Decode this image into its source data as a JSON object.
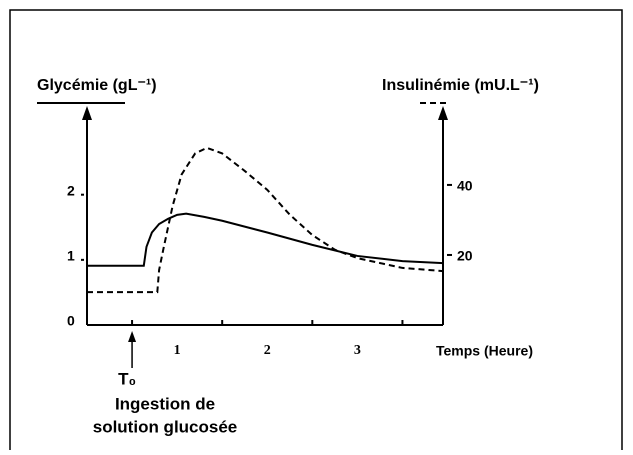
{
  "chart_data": {
    "type": "line",
    "y_label": "Glycémie (gL⁻¹)",
    "y2_label": "Insulinémie (mU.L⁻¹)",
    "x_label": "Temps (Heure)",
    "xlim": [
      0,
      3.95
    ],
    "xticks": [
      1,
      2,
      3
    ],
    "xminor": [
      0.5,
      1.5,
      2.5,
      3.5
    ],
    "ylim": [
      0,
      3.3
    ],
    "yticks": [
      0,
      1,
      2
    ],
    "y2lim": [
      0,
      61.4
    ],
    "y2ticks": [
      20,
      40
    ],
    "series": [
      {
        "color": "#000000",
        "dash": "solid",
        "x": [
          0,
          0.63,
          0.66,
          0.72,
          0.8,
          0.9,
          1.0,
          1.1,
          1.3,
          1.5,
          2.0,
          2.5,
          3.0,
          3.5,
          3.95
        ],
        "values": [
          0.91,
          0.91,
          1.2,
          1.42,
          1.55,
          1.63,
          1.69,
          1.71,
          1.66,
          1.6,
          1.42,
          1.23,
          1.06,
          0.98,
          0.95
        ]
      },
      {
        "color": "#000000",
        "dash": "dashed",
        "axis": "y2",
        "x": [
          0,
          0.78,
          0.8,
          0.85,
          0.95,
          1.05,
          1.2,
          1.33,
          1.5,
          1.75,
          2.0,
          2.25,
          2.5,
          2.75,
          3.0,
          3.5,
          3.95
        ],
        "values": [
          9.4,
          9.4,
          15.7,
          22,
          34,
          43,
          49,
          50.6,
          49,
          44,
          38.6,
          31.5,
          25.7,
          21.5,
          19.1,
          16.3,
          15.4
        ]
      }
    ],
    "annotation": {
      "label": "T₀",
      "x": 0.5,
      "lines": [
        "Ingestion de",
        "solution glucosée"
      ]
    }
  }
}
